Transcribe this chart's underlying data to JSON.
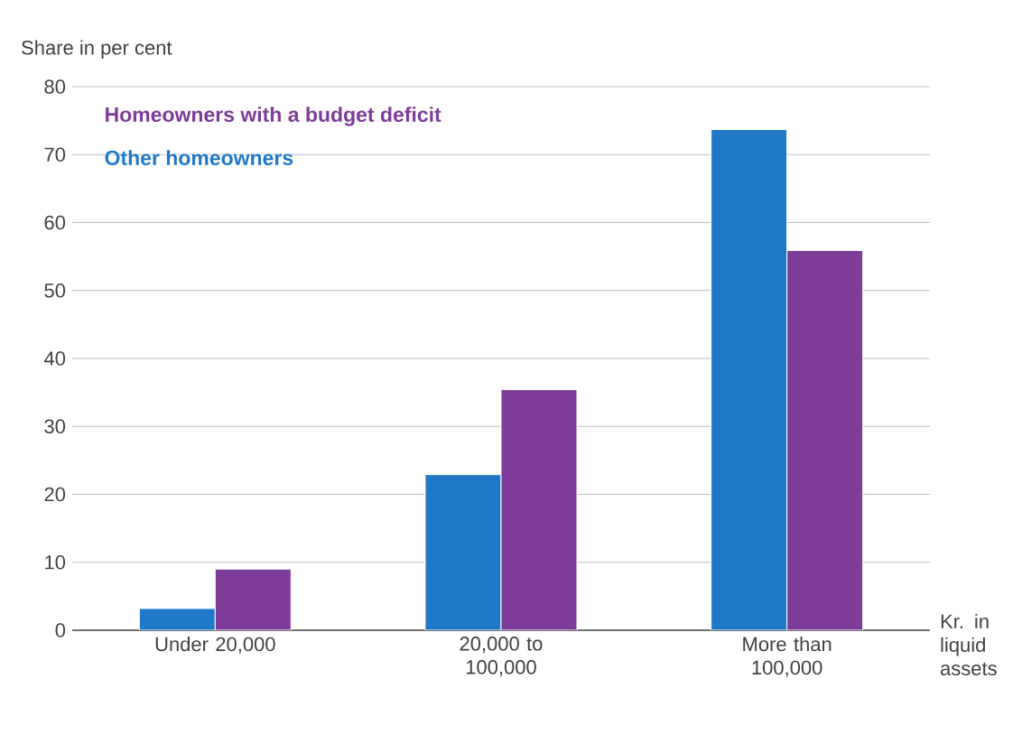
{
  "chart_data": {
    "type": "bar",
    "ylabel": "Share in per cent",
    "xlabel": "Kr. in liquid assets",
    "categories": [
      "Under 20,000",
      "20,000 to 100,000",
      "More than 100,000"
    ],
    "series": [
      {
        "name": "Other homeowners",
        "color": "#1f78c8",
        "values": [
          3.2,
          22.9,
          73.7
        ]
      },
      {
        "name": "Homeowners with a budget deficit",
        "color": "#7d3c98",
        "values": [
          9.0,
          35.4,
          55.9
        ]
      }
    ],
    "ylim": [
      0,
      80
    ],
    "yticks": [
      0,
      10,
      20,
      30,
      40,
      50,
      60,
      70,
      80
    ],
    "grid": "y",
    "legend": "top left"
  }
}
